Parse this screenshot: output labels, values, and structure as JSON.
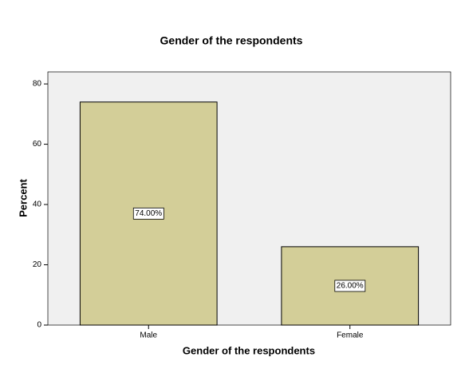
{
  "chart_data": {
    "type": "bar",
    "title": "Gender of the respondents",
    "x_label": "Gender of the respondents",
    "y_label": "Percent",
    "categories": [
      "Male",
      "Female"
    ],
    "values": [
      74,
      26
    ],
    "value_labels": [
      "74.00%",
      "26.00%"
    ],
    "color": "#d3ce98",
    "ylim": [
      0,
      84
    ],
    "yticks": [
      0,
      20,
      40,
      60,
      80
    ],
    "grid": false
  }
}
